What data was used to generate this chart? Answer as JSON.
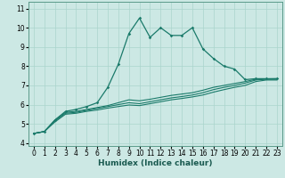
{
  "xlabel": "Humidex (Indice chaleur)",
  "bg_color": "#cce8e4",
  "grid_color": "#aad4cc",
  "line_color": "#1a7a6a",
  "xlim": [
    -0.5,
    23.5
  ],
  "ylim": [
    3.85,
    11.35
  ],
  "yticks": [
    4,
    5,
    6,
    7,
    8,
    9,
    10,
    11
  ],
  "xticks": [
    0,
    1,
    2,
    3,
    4,
    5,
    6,
    7,
    8,
    9,
    10,
    11,
    12,
    13,
    14,
    15,
    16,
    17,
    18,
    19,
    20,
    21,
    22,
    23
  ],
  "line1_x": [
    0,
    1,
    2,
    3,
    4,
    5,
    6,
    7,
    8,
    9,
    10,
    11,
    12,
    13,
    14,
    15,
    16,
    17,
    18,
    19,
    20,
    21,
    22,
    23
  ],
  "line1_y": [
    4.5,
    4.6,
    5.2,
    5.65,
    5.75,
    5.9,
    6.1,
    6.9,
    8.1,
    9.7,
    10.5,
    9.5,
    10.0,
    9.6,
    9.6,
    10.0,
    8.9,
    8.4,
    8.0,
    7.85,
    7.3,
    7.35,
    7.35,
    7.35
  ],
  "line2_x": [
    0,
    1,
    2,
    3,
    4,
    5,
    6,
    7,
    8,
    9,
    10,
    11,
    12,
    13,
    14,
    15,
    16,
    17,
    18,
    19,
    20,
    21,
    22,
    23
  ],
  "line2_y": [
    4.5,
    4.6,
    5.2,
    5.6,
    5.65,
    5.75,
    5.85,
    5.95,
    6.1,
    6.25,
    6.2,
    6.28,
    6.38,
    6.48,
    6.55,
    6.62,
    6.75,
    6.9,
    7.0,
    7.1,
    7.2,
    7.32,
    7.34,
    7.35
  ],
  "line3_x": [
    0,
    1,
    2,
    3,
    4,
    5,
    6,
    7,
    8,
    9,
    10,
    11,
    12,
    13,
    14,
    15,
    16,
    17,
    18,
    19,
    20,
    21,
    22,
    23
  ],
  "line3_y": [
    4.5,
    4.6,
    5.15,
    5.55,
    5.6,
    5.7,
    5.8,
    5.9,
    6.0,
    6.1,
    6.05,
    6.15,
    6.25,
    6.35,
    6.42,
    6.5,
    6.62,
    6.78,
    6.9,
    7.0,
    7.12,
    7.28,
    7.32,
    7.32
  ],
  "line4_x": [
    0,
    1,
    2,
    3,
    4,
    5,
    6,
    7,
    8,
    9,
    10,
    11,
    12,
    13,
    14,
    15,
    16,
    17,
    18,
    19,
    20,
    21,
    22,
    23
  ],
  "line4_y": [
    4.5,
    4.6,
    5.1,
    5.5,
    5.55,
    5.65,
    5.72,
    5.82,
    5.9,
    5.98,
    5.95,
    6.05,
    6.15,
    6.25,
    6.32,
    6.4,
    6.5,
    6.65,
    6.78,
    6.9,
    7.0,
    7.2,
    7.28,
    7.28
  ],
  "tick_fontsize": 5.5,
  "label_fontsize": 6.5
}
